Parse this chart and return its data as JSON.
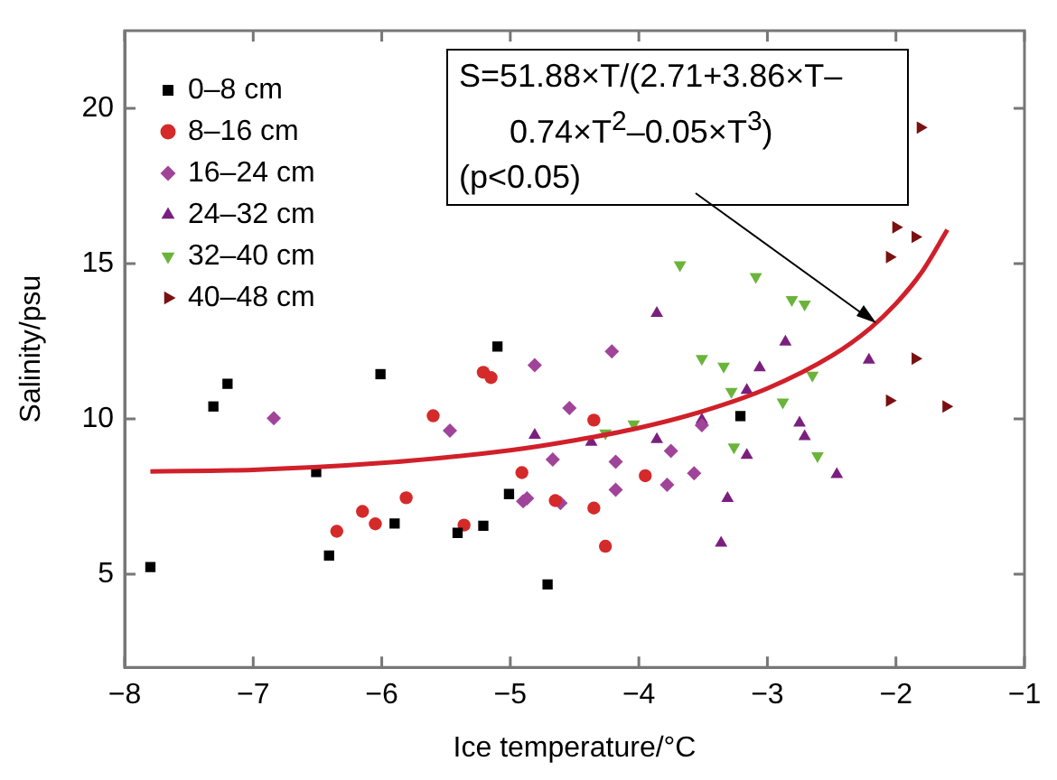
{
  "chart_data": {
    "type": "scatter",
    "xlabel": "Ice temperature/°C",
    "ylabel": "Salinity/psu",
    "xlim": [
      -8,
      -1
    ],
    "xticks": [
      -8,
      -7,
      -6,
      -5,
      -4,
      -3,
      -2,
      -1
    ],
    "ylim": [
      2,
      22.5
    ],
    "yticks": [
      5,
      10,
      15,
      20
    ],
    "grid": false,
    "legend": "top left",
    "annotations": [
      "S=51.88×T/(2.71+3.86×T–0.74×T$^{2}$–0.05×T$^{3}$)",
      "(p<0.05)"
    ],
    "series": [
      {
        "name": "0–8 cm",
        "color": "#000000",
        "marker": "square",
        "x": [
          -7.8,
          -7.31,
          -7.2,
          -6.51,
          -6.01,
          -6.41,
          -5.9,
          -5.41,
          -5.21,
          -5.1,
          -5.01,
          -4.71,
          -3.21
        ],
        "values": [
          5.23,
          10.4,
          11.13,
          8.29,
          11.44,
          5.6,
          6.63,
          6.33,
          6.56,
          12.33,
          7.58,
          4.67,
          10.09
        ]
      },
      {
        "name": "8–16 cm",
        "color": "#d42a2a",
        "marker": "circle",
        "x": [
          -6.35,
          -6.15,
          -6.05,
          -5.81,
          -5.6,
          -5.36,
          -5.21,
          -5.15,
          -4.91,
          -4.65,
          -4.35,
          -4.35,
          -4.26,
          -3.95
        ],
        "values": [
          6.38,
          7.02,
          6.62,
          7.46,
          10.1,
          6.58,
          11.5,
          11.33,
          8.27,
          7.37,
          9.96,
          7.13,
          5.9,
          8.17
        ]
      },
      {
        "name": "16–24 cm",
        "color": "#a0449a",
        "marker": "diamond",
        "x": [
          -6.84,
          -5.47,
          -4.81,
          -4.67,
          -4.9,
          -4.87,
          -4.61,
          -4.54,
          -4.21,
          -4.18,
          -4.18,
          -3.78,
          -3.75,
          -3.57,
          -3.51
        ],
        "values": [
          10.02,
          9.62,
          11.73,
          8.69,
          7.35,
          7.44,
          7.29,
          10.35,
          12.17,
          8.62,
          7.72,
          7.88,
          8.97,
          8.25,
          9.8
        ]
      },
      {
        "name": "24–32 cm",
        "color": "#7b1f7e",
        "marker": "triangle",
        "x": [
          -4.81,
          -4.37,
          -3.86,
          -3.86,
          -3.51,
          -3.31,
          -3.36,
          -3.16,
          -3.16,
          -3.06,
          -2.86,
          -2.75,
          -2.71,
          -2.46,
          -2.21
        ],
        "values": [
          9.48,
          9.25,
          13.4,
          9.34,
          9.97,
          7.44,
          6.0,
          10.92,
          8.83,
          11.65,
          12.48,
          9.87,
          9.43,
          8.21,
          11.9
        ]
      },
      {
        "name": "32–40 cm",
        "color": "#6ab43a",
        "marker": "triangle-down",
        "x": [
          -3.68,
          -3.09,
          -2.81,
          -2.71,
          -3.51,
          -3.34,
          -3.28,
          -2.65,
          -2.88,
          -4.04,
          -4.26,
          -3.26,
          -2.61
        ],
        "values": [
          14.96,
          14.58,
          13.84,
          13.69,
          11.94,
          11.69,
          10.88,
          11.4,
          10.54,
          9.83,
          9.54,
          9.09,
          8.81
        ]
      },
      {
        "name": "40–48 cm",
        "color": "#7a1010",
        "marker": "triangle-right",
        "x": [
          -1.81,
          -2.0,
          -1.85,
          -2.05,
          -1.85,
          -2.05,
          -1.61
        ],
        "values": [
          19.38,
          16.17,
          15.86,
          15.21,
          11.94,
          10.59,
          10.4
        ]
      },
      {
        "type": "line",
        "color": "#d0202a",
        "marker": "none",
        "line_style": "solid",
        "x": [
          -7.8,
          -7,
          -6,
          -5,
          -4.5,
          -4,
          -3.5,
          -3,
          -2.5,
          -2.2,
          -2,
          -1.8,
          -1.6
        ],
        "values": [
          8.31,
          8.36,
          8.58,
          8.99,
          9.31,
          9.71,
          10.25,
          10.98,
          12.03,
          12.92,
          13.71,
          14.72,
          16.09
        ]
      }
    ]
  }
}
